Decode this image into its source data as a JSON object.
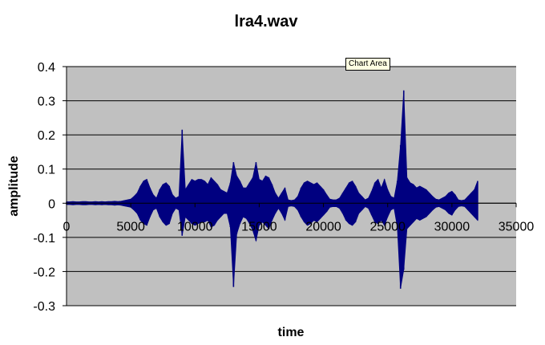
{
  "tooltip": "Chart Area",
  "chart_data": {
    "type": "line",
    "title": "lra4.wav",
    "xlabel": "time",
    "ylabel": "amplitude",
    "xlim": [
      0,
      35000
    ],
    "ylim": [
      -0.3,
      0.4
    ],
    "x_ticks": [
      0,
      5000,
      10000,
      15000,
      20000,
      25000,
      30000,
      35000
    ],
    "y_ticks": [
      0.4,
      0.3,
      0.2,
      0.1,
      0,
      -0.1,
      -0.2,
      -0.3
    ],
    "y_tick_labels": [
      "0.4",
      "0.3",
      "0.2",
      "0.1",
      "0",
      "-0.1",
      "-0.2",
      "-0.3"
    ],
    "grid": "horizontal",
    "legend": "none",
    "colors": {
      "plot_background": "#c0c0c0",
      "series": "#000080",
      "grid": "#000000"
    },
    "series": [
      {
        "sample_step": 250,
        "x": [
          0,
          250,
          500,
          750,
          1000,
          1250,
          1500,
          1750,
          2000,
          2250,
          2500,
          2750,
          3000,
          3250,
          3500,
          3750,
          4000,
          4250,
          4500,
          4750,
          5000,
          5250,
          5500,
          5750,
          6000,
          6250,
          6500,
          6750,
          7000,
          7250,
          7500,
          7750,
          8000,
          8250,
          8500,
          8750,
          9000,
          9250,
          9500,
          9750,
          10000,
          10250,
          10500,
          10750,
          11000,
          11250,
          11500,
          11750,
          12000,
          12250,
          12500,
          12750,
          13000,
          13250,
          13500,
          13750,
          14000,
          14250,
          14500,
          14750,
          15000,
          15250,
          15500,
          15750,
          16000,
          16250,
          16500,
          16750,
          17000,
          17250,
          17500,
          17750,
          18000,
          18250,
          18500,
          18750,
          19000,
          19250,
          19500,
          19750,
          20000,
          20250,
          20500,
          20750,
          21000,
          21250,
          21500,
          21750,
          22000,
          22250,
          22500,
          22750,
          23000,
          23250,
          23500,
          23750,
          24000,
          24250,
          24500,
          24750,
          25000,
          25250,
          25500,
          25750,
          26000,
          26250,
          26500,
          26750,
          27000,
          27250,
          27500,
          27750,
          28000,
          28250,
          28500,
          28750,
          29000,
          29250,
          29500,
          29750,
          30000,
          30250,
          30500,
          30750,
          31000,
          31250,
          31500,
          31750,
          32000
        ],
        "upper": [
          0.004,
          0.004,
          0.005,
          0.004,
          0.004,
          0.005,
          0.005,
          0.004,
          0.004,
          0.005,
          0.004,
          0.005,
          0.004,
          0.005,
          0.005,
          0.006,
          0.005,
          0.006,
          0.008,
          0.01,
          0.012,
          0.02,
          0.03,
          0.05,
          0.065,
          0.07,
          0.045,
          0.025,
          0.015,
          0.04,
          0.055,
          0.06,
          0.05,
          0.025,
          0.015,
          0.02,
          0.215,
          0.04,
          0.055,
          0.07,
          0.065,
          0.07,
          0.07,
          0.065,
          0.055,
          0.075,
          0.065,
          0.055,
          0.04,
          0.035,
          0.03,
          0.06,
          0.12,
          0.08,
          0.065,
          0.045,
          0.045,
          0.06,
          0.075,
          0.12,
          0.07,
          0.065,
          0.08,
          0.075,
          0.055,
          0.03,
          0.015,
          0.03,
          0.045,
          0.01,
          0.008,
          0.01,
          0.02,
          0.045,
          0.06,
          0.065,
          0.06,
          0.055,
          0.06,
          0.05,
          0.04,
          0.025,
          0.012,
          0.01,
          0.01,
          0.015,
          0.03,
          0.045,
          0.06,
          0.065,
          0.05,
          0.03,
          0.02,
          0.01,
          0.015,
          0.035,
          0.06,
          0.07,
          0.045,
          0.07,
          0.04,
          0.02,
          0.015,
          0.065,
          0.17,
          0.33,
          0.075,
          0.06,
          0.055,
          0.045,
          0.05,
          0.045,
          0.04,
          0.03,
          0.02,
          0.012,
          0.01,
          0.015,
          0.02,
          0.03,
          0.035,
          0.025,
          0.01,
          0.008,
          0.01,
          0.02,
          0.03,
          0.04,
          0.065
        ],
        "lower": [
          -0.004,
          -0.004,
          -0.005,
          -0.004,
          -0.004,
          -0.005,
          -0.005,
          -0.004,
          -0.004,
          -0.005,
          -0.004,
          -0.005,
          -0.004,
          -0.005,
          -0.005,
          -0.006,
          -0.005,
          -0.006,
          -0.008,
          -0.01,
          -0.012,
          -0.02,
          -0.03,
          -0.05,
          -0.06,
          -0.065,
          -0.04,
          -0.02,
          -0.015,
          -0.04,
          -0.055,
          -0.065,
          -0.06,
          -0.03,
          -0.015,
          -0.02,
          -0.095,
          -0.04,
          -0.05,
          -0.06,
          -0.065,
          -0.06,
          -0.055,
          -0.055,
          -0.05,
          -0.07,
          -0.065,
          -0.05,
          -0.04,
          -0.03,
          -0.03,
          -0.07,
          -0.245,
          -0.09,
          -0.06,
          -0.04,
          -0.045,
          -0.06,
          -0.08,
          -0.11,
          -0.065,
          -0.055,
          -0.065,
          -0.075,
          -0.05,
          -0.03,
          -0.015,
          -0.03,
          -0.05,
          -0.01,
          -0.008,
          -0.01,
          -0.02,
          -0.04,
          -0.055,
          -0.065,
          -0.06,
          -0.05,
          -0.055,
          -0.045,
          -0.035,
          -0.025,
          -0.012,
          -0.01,
          -0.01,
          -0.015,
          -0.03,
          -0.05,
          -0.06,
          -0.065,
          -0.055,
          -0.03,
          -0.02,
          -0.01,
          -0.015,
          -0.035,
          -0.055,
          -0.06,
          -0.05,
          -0.065,
          -0.04,
          -0.02,
          -0.015,
          -0.07,
          -0.25,
          -0.195,
          -0.075,
          -0.065,
          -0.055,
          -0.045,
          -0.05,
          -0.045,
          -0.04,
          -0.03,
          -0.02,
          -0.012,
          -0.01,
          -0.015,
          -0.02,
          -0.03,
          -0.035,
          -0.02,
          -0.01,
          -0.008,
          -0.01,
          -0.02,
          -0.03,
          -0.04,
          -0.05
        ]
      }
    ]
  }
}
